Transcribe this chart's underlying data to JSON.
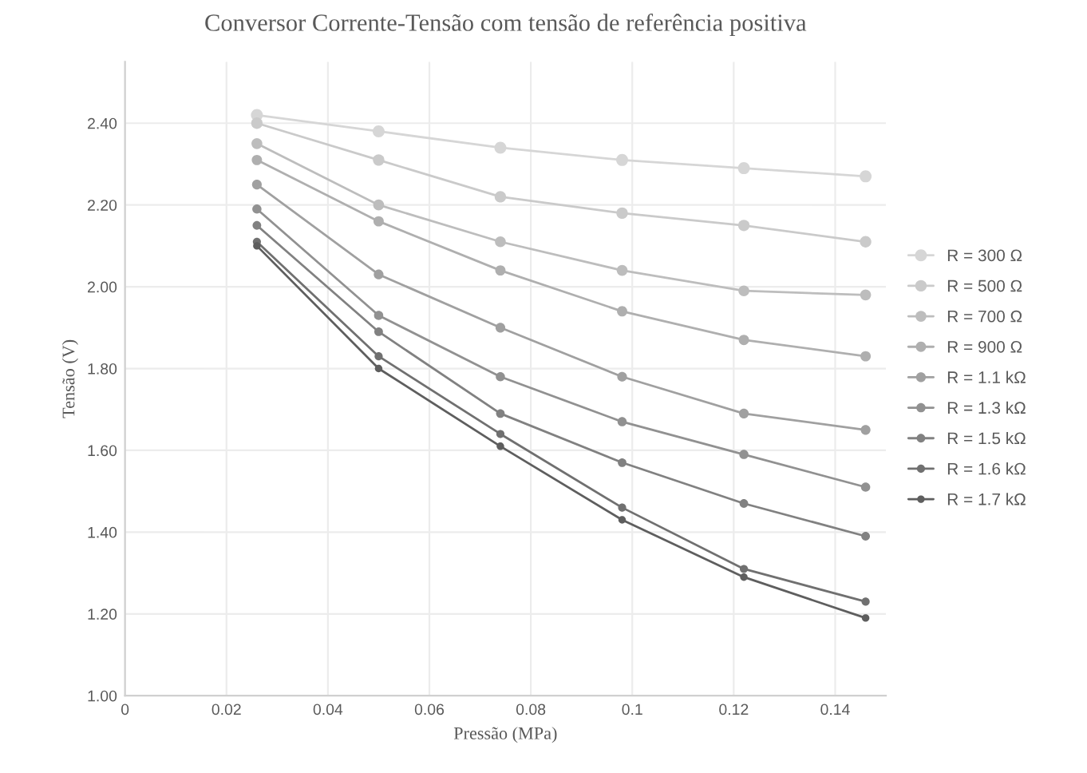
{
  "chart_data": {
    "type": "line",
    "title": "Conversor Corrente-Tensão com tensão de referência positiva",
    "xlabel": "Pressão (MPa)",
    "ylabel": "Tensão (V)",
    "x": [
      0.026,
      0.05,
      0.074,
      0.098,
      0.122,
      0.146
    ],
    "series": [
      {
        "name": "R = 300 Ω",
        "color": "#d6d6d6",
        "values": [
          2.42,
          2.38,
          2.34,
          2.31,
          2.29,
          2.27
        ]
      },
      {
        "name": "R = 500 Ω",
        "color": "#cacaca",
        "values": [
          2.4,
          2.31,
          2.22,
          2.18,
          2.15,
          2.11
        ]
      },
      {
        "name": "R = 700 Ω",
        "color": "#bdbdbd",
        "values": [
          2.35,
          2.2,
          2.11,
          2.04,
          1.99,
          1.98
        ]
      },
      {
        "name": "R = 900 Ω",
        "color": "#afafaf",
        "values": [
          2.31,
          2.16,
          2.04,
          1.94,
          1.87,
          1.83
        ]
      },
      {
        "name": "R = 1.1 kΩ",
        "color": "#a0a0a0",
        "values": [
          2.25,
          2.03,
          1.9,
          1.78,
          1.69,
          1.65
        ]
      },
      {
        "name": "R = 1.3 kΩ",
        "color": "#919191",
        "values": [
          2.19,
          1.93,
          1.78,
          1.67,
          1.59,
          1.51
        ]
      },
      {
        "name": "R = 1.5 kΩ",
        "color": "#818181",
        "values": [
          2.15,
          1.89,
          1.69,
          1.57,
          1.47,
          1.39
        ]
      },
      {
        "name": "R = 1.6 kΩ",
        "color": "#707070",
        "values": [
          2.11,
          1.83,
          1.64,
          1.46,
          1.31,
          1.23
        ]
      },
      {
        "name": "R = 1.7 kΩ",
        "color": "#5e5e5e",
        "values": [
          2.1,
          1.8,
          1.61,
          1.43,
          1.29,
          1.19
        ]
      }
    ],
    "xlim": [
      0,
      0.15
    ],
    "xticks": [
      0,
      0.02,
      0.04,
      0.06,
      0.08,
      0.1,
      0.12,
      0.14
    ],
    "ylim": [
      1.0,
      2.55
    ],
    "yticks": [
      {
        "value": 1.0,
        "label": "1.00"
      },
      {
        "value": 1.2,
        "label": "1.20"
      },
      {
        "value": 1.4,
        "label": "1.40"
      },
      {
        "value": 1.6,
        "label": "1.60"
      },
      {
        "value": 1.8,
        "label": "1.80"
      },
      {
        "value": 2.0,
        "label": "2.00"
      },
      {
        "value": 2.2,
        "label": "2.20"
      },
      {
        "value": 2.4,
        "label": "2.40"
      }
    ],
    "grid": true,
    "legend": "right",
    "marker": "circle",
    "line_style": "solid"
  }
}
